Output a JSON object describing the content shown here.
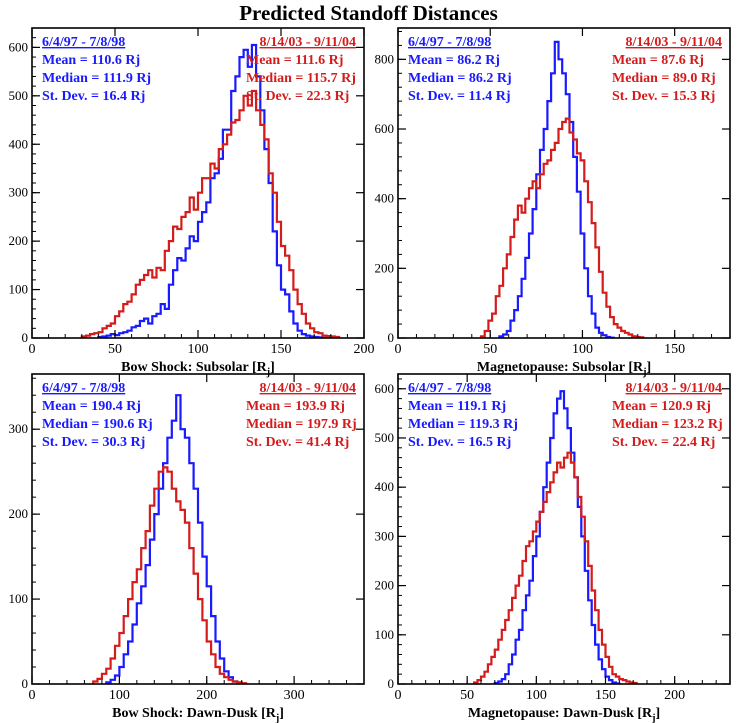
{
  "title": "Predicted Standoff Distances",
  "colors": {
    "period_a": "#1a1aff",
    "period_b": "#d41c1c"
  },
  "chart_data": [
    {
      "type": "histogram-step",
      "id": "bow-shock-subsolar",
      "xlabel": "Bow Shock: Subsolar [R",
      "xlabel_sub": "j",
      "xlim": [
        0,
        200
      ],
      "ylim": [
        0,
        640
      ],
      "xticks": [
        0,
        50,
        100,
        150,
        200
      ],
      "yticks": [
        0,
        100,
        200,
        300,
        400,
        500,
        600
      ],
      "series": [
        {
          "name": "6/4/97 - 7/8/98",
          "color": "#1a1aff",
          "stats": [
            "Mean = 110.6 Rj",
            "Median = 111.9 Rj",
            "St. Dev. = 16.4 Rj"
          ],
          "x_start": 40,
          "step": 2.5,
          "values": [
            2,
            3,
            5,
            8,
            6,
            10,
            12,
            15,
            22,
            25,
            35,
            40,
            30,
            45,
            50,
            70,
            60,
            110,
            140,
            165,
            160,
            185,
            210,
            200,
            240,
            260,
            280,
            330,
            340,
            370,
            430,
            430,
            510,
            540,
            580,
            595,
            560,
            605,
            540,
            470,
            390,
            320,
            220,
            150,
            100,
            90,
            55,
            30,
            15,
            8,
            5,
            3,
            2,
            1,
            0,
            0,
            0
          ]
        },
        {
          "name": "8/14/03 - 9/11/04",
          "color": "#d41c1c",
          "stats": [
            "Mean = 111.6 Rj",
            "Median = 115.7 Rj",
            "St. Dev. = 22.3 Rj"
          ],
          "x_start": 30,
          "step": 2.5,
          "values": [
            3,
            5,
            8,
            10,
            12,
            20,
            25,
            30,
            45,
            55,
            70,
            75,
            90,
            110,
            120,
            130,
            140,
            125,
            145,
            140,
            180,
            200,
            230,
            225,
            250,
            260,
            290,
            265,
            300,
            330,
            330,
            360,
            350,
            390,
            400,
            420,
            445,
            450,
            470,
            500,
            480,
            510,
            470,
            440,
            410,
            340,
            300,
            240,
            190,
            170,
            140,
            100,
            70,
            50,
            30,
            20,
            12,
            10,
            5,
            4,
            3,
            2
          ]
        }
      ]
    },
    {
      "type": "histogram-step",
      "id": "magnetopause-subsolar",
      "xlabel": "Magnetopause: Subsolar [R",
      "xlabel_sub": "j",
      "xlim": [
        0,
        180
      ],
      "ylim": [
        0,
        890
      ],
      "xticks": [
        0,
        50,
        100,
        150
      ],
      "yticks": [
        0,
        200,
        400,
        600,
        800
      ],
      "series": [
        {
          "name": "6/4/97 - 7/8/98",
          "color": "#1a1aff",
          "stats": [
            "Mean = 86.2 Rj",
            "Median = 86.2 Rj",
            "St. Dev. = 11.4 Rj"
          ],
          "x_start": 55,
          "step": 2,
          "values": [
            5,
            10,
            20,
            50,
            80,
            120,
            170,
            230,
            300,
            370,
            470,
            540,
            600,
            680,
            760,
            850,
            800,
            760,
            700,
            620,
            520,
            420,
            300,
            200,
            120,
            70,
            30,
            15,
            8,
            3,
            1
          ]
        },
        {
          "name": "8/14/03 - 9/11/04",
          "color": "#d41c1c",
          "stats": [
            "Mean = 87.6 Rj",
            "Median = 89.0 Rj",
            "St. Dev. = 15.3 Rj"
          ],
          "x_start": 45,
          "step": 2,
          "values": [
            5,
            20,
            50,
            70,
            120,
            150,
            200,
            240,
            290,
            340,
            380,
            360,
            400,
            430,
            450,
            430,
            470,
            500,
            510,
            540,
            560,
            600,
            620,
            630,
            590,
            570,
            530,
            510,
            450,
            390,
            330,
            260,
            190,
            130,
            90,
            60,
            40,
            30,
            20,
            15,
            10,
            5,
            3,
            2
          ]
        }
      ]
    },
    {
      "type": "histogram-step",
      "id": "bow-shock-dawn-dusk",
      "xlabel": "Bow Shock: Dawn-Dusk [R",
      "xlabel_sub": "j",
      "xlim": [
        0,
        380
      ],
      "ylim": [
        0,
        365
      ],
      "xticks": [
        0,
        100,
        200,
        300
      ],
      "yticks": [
        0,
        100,
        200,
        300
      ],
      "series": [
        {
          "name": "6/4/97 - 7/8/98",
          "color": "#1a1aff",
          "stats": [
            "Mean = 190.4 Rj",
            "Median = 190.6 Rj",
            "St. Dev. = 30.3 Rj"
          ],
          "x_start": 85,
          "step": 5,
          "values": [
            2,
            5,
            10,
            20,
            35,
            50,
            70,
            95,
            115,
            140,
            170,
            200,
            230,
            260,
            290,
            310,
            340,
            300,
            290,
            260,
            230,
            190,
            150,
            115,
            80,
            50,
            30,
            15,
            8,
            3,
            1
          ]
        },
        {
          "name": "8/14/03 - 9/11/04",
          "color": "#d41c1c",
          "stats": [
            "Mean = 193.9 Rj",
            "Median = 197.9 Rj",
            "St. Dev. = 41.4 Rj"
          ],
          "x_start": 70,
          "step": 5,
          "values": [
            3,
            6,
            12,
            18,
            30,
            45,
            60,
            80,
            100,
            120,
            135,
            160,
            180,
            210,
            230,
            250,
            255,
            250,
            230,
            215,
            205,
            190,
            160,
            130,
            100,
            75,
            50,
            35,
            20,
            12,
            8,
            5,
            3,
            2,
            1
          ]
        }
      ]
    },
    {
      "type": "histogram-step",
      "id": "magnetopause-dawn-dusk",
      "xlabel": "Magnetopause: Dawn-Dusk [R",
      "xlabel_sub": "j",
      "xlim": [
        0,
        240
      ],
      "ylim": [
        0,
        630
      ],
      "xticks": [
        0,
        50,
        100,
        150,
        200
      ],
      "yticks": [
        0,
        100,
        200,
        300,
        400,
        500,
        600
      ],
      "series": [
        {
          "name": "6/4/97 - 7/8/98",
          "color": "#1a1aff",
          "stats": [
            "Mean = 119.1 Rj",
            "Median = 119.3 Rj",
            "St. Dev. = 16.5 Rj"
          ],
          "x_start": 70,
          "step": 2.5,
          "values": [
            2,
            5,
            10,
            20,
            40,
            60,
            90,
            110,
            150,
            180,
            210,
            260,
            300,
            350,
            400,
            450,
            500,
            550,
            580,
            595,
            560,
            520,
            470,
            420,
            360,
            300,
            230,
            170,
            120,
            80,
            50,
            30,
            15,
            8,
            3,
            1
          ]
        },
        {
          "name": "8/14/03 - 9/11/04",
          "color": "#d41c1c",
          "stats": [
            "Mean = 120.9 Rj",
            "Median = 123.2 Rj",
            "St. Dev. = 22.4 Rj"
          ],
          "x_start": 55,
          "step": 2.5,
          "values": [
            3,
            8,
            15,
            25,
            40,
            55,
            70,
            90,
            110,
            130,
            150,
            175,
            200,
            220,
            250,
            280,
            290,
            310,
            330,
            350,
            370,
            390,
            410,
            430,
            450,
            440,
            460,
            470,
            450,
            420,
            380,
            340,
            290,
            240,
            190,
            150,
            110,
            80,
            55,
            35,
            20,
            15,
            10,
            8,
            5,
            3,
            2
          ]
        }
      ]
    }
  ]
}
